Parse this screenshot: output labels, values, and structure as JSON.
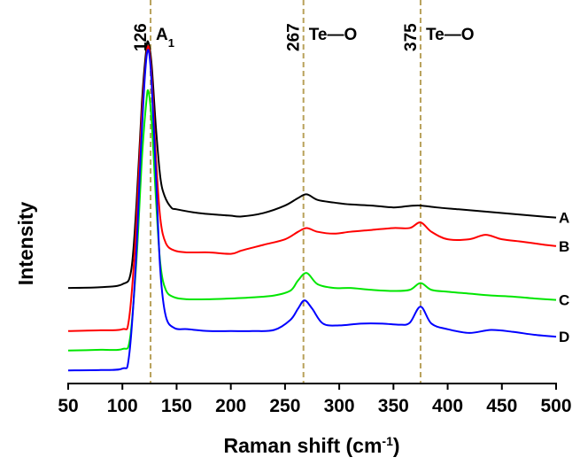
{
  "chart_data": {
    "type": "line",
    "xlabel": "Raman shift (cm",
    "xlabel_sup": "-1",
    "xlabel_close": ")",
    "ylabel": "Intensity",
    "xlim": [
      50,
      500
    ],
    "x_ticks": [
      50,
      100,
      150,
      200,
      250,
      300,
      350,
      400,
      450,
      500
    ],
    "x_tick_labels": [
      "50",
      "100",
      "150",
      "200",
      "250",
      "300",
      "350",
      "400",
      "450",
      "500"
    ],
    "y_ticks_shown": false,
    "ylim": [
      0,
      100
    ],
    "reference_lines": [
      {
        "x": 126,
        "value_label": "126",
        "mode_label": "A",
        "mode_sub": "1",
        "color": "#b8a15a"
      },
      {
        "x": 267,
        "value_label": "267",
        "mode_label": "Te—O",
        "color": "#b8a15a"
      },
      {
        "x": 375,
        "value_label": "375",
        "mode_label": "Te—O",
        "color": "#b8a15a"
      }
    ],
    "series": [
      {
        "name": "A",
        "color": "#000000",
        "points": [
          [
            50,
            25.5
          ],
          [
            80,
            25.7
          ],
          [
            100,
            26.5
          ],
          [
            108,
            30
          ],
          [
            113,
            48
          ],
          [
            118,
            75
          ],
          [
            122,
            89
          ],
          [
            124,
            91
          ],
          [
            127,
            85
          ],
          [
            131,
            68
          ],
          [
            135,
            55
          ],
          [
            139,
            50
          ],
          [
            145,
            47
          ],
          [
            150,
            46.5
          ],
          [
            170,
            45.5
          ],
          [
            190,
            45
          ],
          [
            200,
            44.8
          ],
          [
            210,
            44.6
          ],
          [
            230,
            45.5
          ],
          [
            250,
            47.5
          ],
          [
            262,
            49.5
          ],
          [
            270,
            50.5
          ],
          [
            280,
            49
          ],
          [
            295,
            48.3
          ],
          [
            310,
            47.8
          ],
          [
            330,
            47.5
          ],
          [
            350,
            47
          ],
          [
            365,
            47.4
          ],
          [
            375,
            47.5
          ],
          [
            390,
            47
          ],
          [
            410,
            46.5
          ],
          [
            430,
            46
          ],
          [
            450,
            45.5
          ],
          [
            470,
            45
          ],
          [
            490,
            44.5
          ],
          [
            500,
            44.3
          ]
        ]
      },
      {
        "name": "B",
        "color": "#ff0000",
        "points": [
          [
            50,
            14
          ],
          [
            80,
            14.2
          ],
          [
            100,
            14.5
          ],
          [
            106,
            17
          ],
          [
            112,
            38
          ],
          [
            117,
            67
          ],
          [
            121,
            84
          ],
          [
            124,
            90
          ],
          [
            127,
            82
          ],
          [
            131,
            60
          ],
          [
            135,
            44
          ],
          [
            140,
            37.5
          ],
          [
            148,
            35.5
          ],
          [
            160,
            35
          ],
          [
            180,
            35
          ],
          [
            200,
            34.6
          ],
          [
            210,
            35.5
          ],
          [
            230,
            37
          ],
          [
            250,
            38.5
          ],
          [
            262,
            40.5
          ],
          [
            270,
            41.5
          ],
          [
            280,
            40.5
          ],
          [
            295,
            40
          ],
          [
            310,
            40.5
          ],
          [
            330,
            41
          ],
          [
            350,
            41.5
          ],
          [
            365,
            41.5
          ],
          [
            375,
            43
          ],
          [
            385,
            40.5
          ],
          [
            400,
            38.5
          ],
          [
            420,
            38.5
          ],
          [
            435,
            39.7
          ],
          [
            450,
            38.5
          ],
          [
            470,
            37.8
          ],
          [
            490,
            37
          ],
          [
            500,
            36.7
          ]
        ]
      },
      {
        "name": "C",
        "color": "#00e600",
        "points": [
          [
            50,
            8.8
          ],
          [
            80,
            9
          ],
          [
            100,
            9.2
          ],
          [
            107,
            12
          ],
          [
            113,
            33
          ],
          [
            118,
            60
          ],
          [
            122,
            75
          ],
          [
            124,
            78
          ],
          [
            127,
            70
          ],
          [
            131,
            49
          ],
          [
            135,
            32
          ],
          [
            140,
            25
          ],
          [
            148,
            23
          ],
          [
            160,
            22.5
          ],
          [
            180,
            22.5
          ],
          [
            200,
            22.7
          ],
          [
            220,
            23
          ],
          [
            240,
            23.5
          ],
          [
            255,
            24.8
          ],
          [
            262,
            27.5
          ],
          [
            270,
            29.5
          ],
          [
            280,
            26.5
          ],
          [
            295,
            25.5
          ],
          [
            310,
            25.5
          ],
          [
            330,
            25
          ],
          [
            350,
            24.7
          ],
          [
            365,
            25
          ],
          [
            375,
            26.8
          ],
          [
            385,
            25
          ],
          [
            400,
            24.5
          ],
          [
            420,
            24
          ],
          [
            440,
            23.5
          ],
          [
            460,
            23.2
          ],
          [
            480,
            22.7
          ],
          [
            500,
            22.3
          ]
        ]
      },
      {
        "name": "D",
        "color": "#0000ff",
        "points": [
          [
            50,
            3.5
          ],
          [
            80,
            3.6
          ],
          [
            100,
            4
          ],
          [
            106,
            7
          ],
          [
            112,
            30
          ],
          [
            117,
            62
          ],
          [
            121,
            83
          ],
          [
            124,
            89
          ],
          [
            127,
            80
          ],
          [
            131,
            55
          ],
          [
            135,
            30
          ],
          [
            140,
            18
          ],
          [
            148,
            14.8
          ],
          [
            160,
            14.5
          ],
          [
            180,
            14
          ],
          [
            200,
            14
          ],
          [
            220,
            14
          ],
          [
            240,
            14.3
          ],
          [
            255,
            17
          ],
          [
            262,
            20
          ],
          [
            268,
            22.2
          ],
          [
            275,
            20
          ],
          [
            285,
            16
          ],
          [
            300,
            15.5
          ],
          [
            320,
            16
          ],
          [
            340,
            16
          ],
          [
            355,
            15.7
          ],
          [
            365,
            16.2
          ],
          [
            375,
            20.5
          ],
          [
            385,
            16
          ],
          [
            400,
            14.5
          ],
          [
            420,
            13.5
          ],
          [
            440,
            14.3
          ],
          [
            460,
            13.8
          ],
          [
            480,
            13
          ],
          [
            500,
            12.5
          ]
        ]
      }
    ]
  }
}
